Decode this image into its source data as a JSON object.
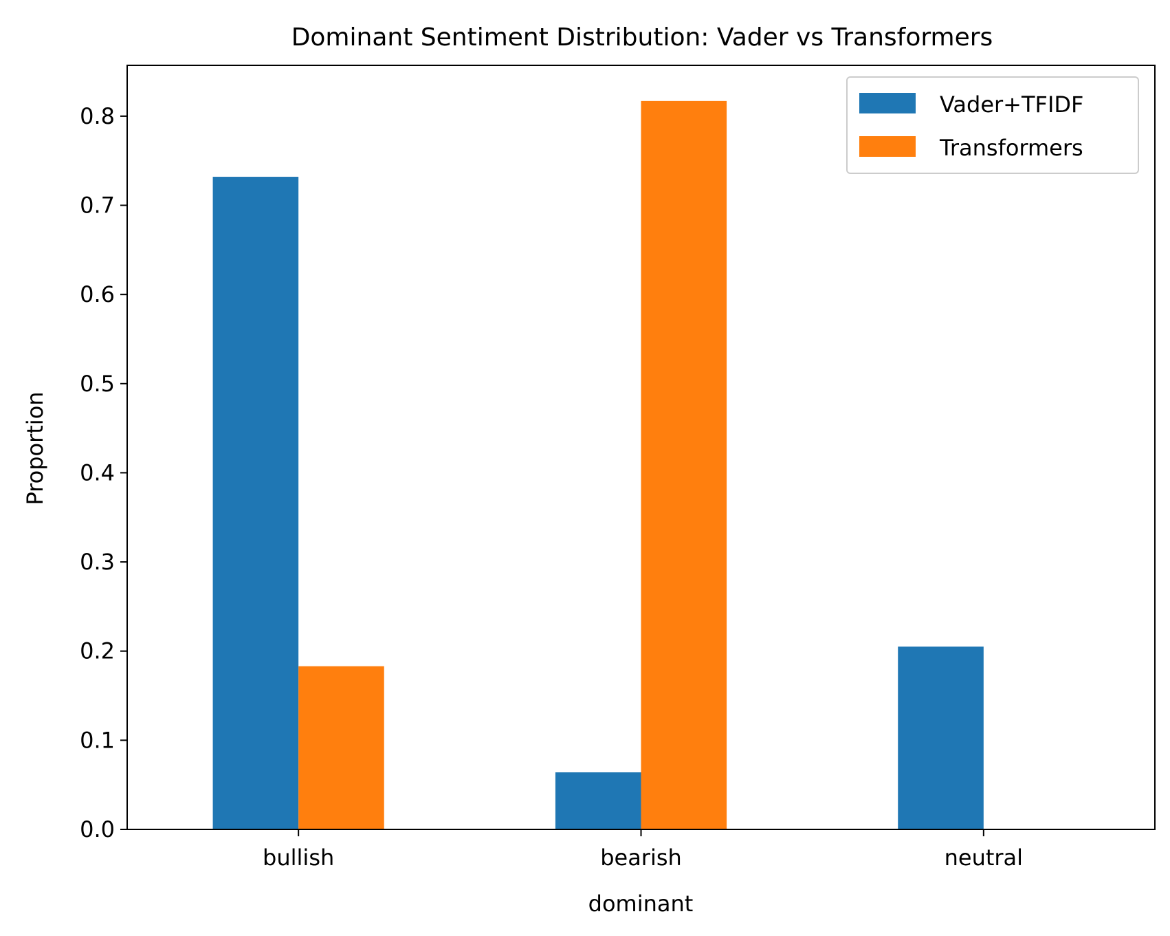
{
  "chart_data": {
    "type": "bar",
    "title": "Dominant Sentiment Distribution: Vader vs Transformers",
    "xlabel": "dominant",
    "ylabel": "Proportion",
    "categories": [
      "bullish",
      "bearish",
      "neutral"
    ],
    "series": [
      {
        "name": "Vader+TFIDF",
        "color": "#1f77b4",
        "values": [
          0.732,
          0.064,
          0.205
        ]
      },
      {
        "name": "Transformers",
        "color": "#ff7f0e",
        "values": [
          0.183,
          0.817,
          0.0
        ]
      }
    ],
    "ylim": [
      0,
      0.857
    ],
    "yticks": [
      "0.0",
      "0.1",
      "0.2",
      "0.3",
      "0.4",
      "0.5",
      "0.6",
      "0.7",
      "0.8"
    ],
    "grid": false,
    "legend_position": "top-right"
  }
}
